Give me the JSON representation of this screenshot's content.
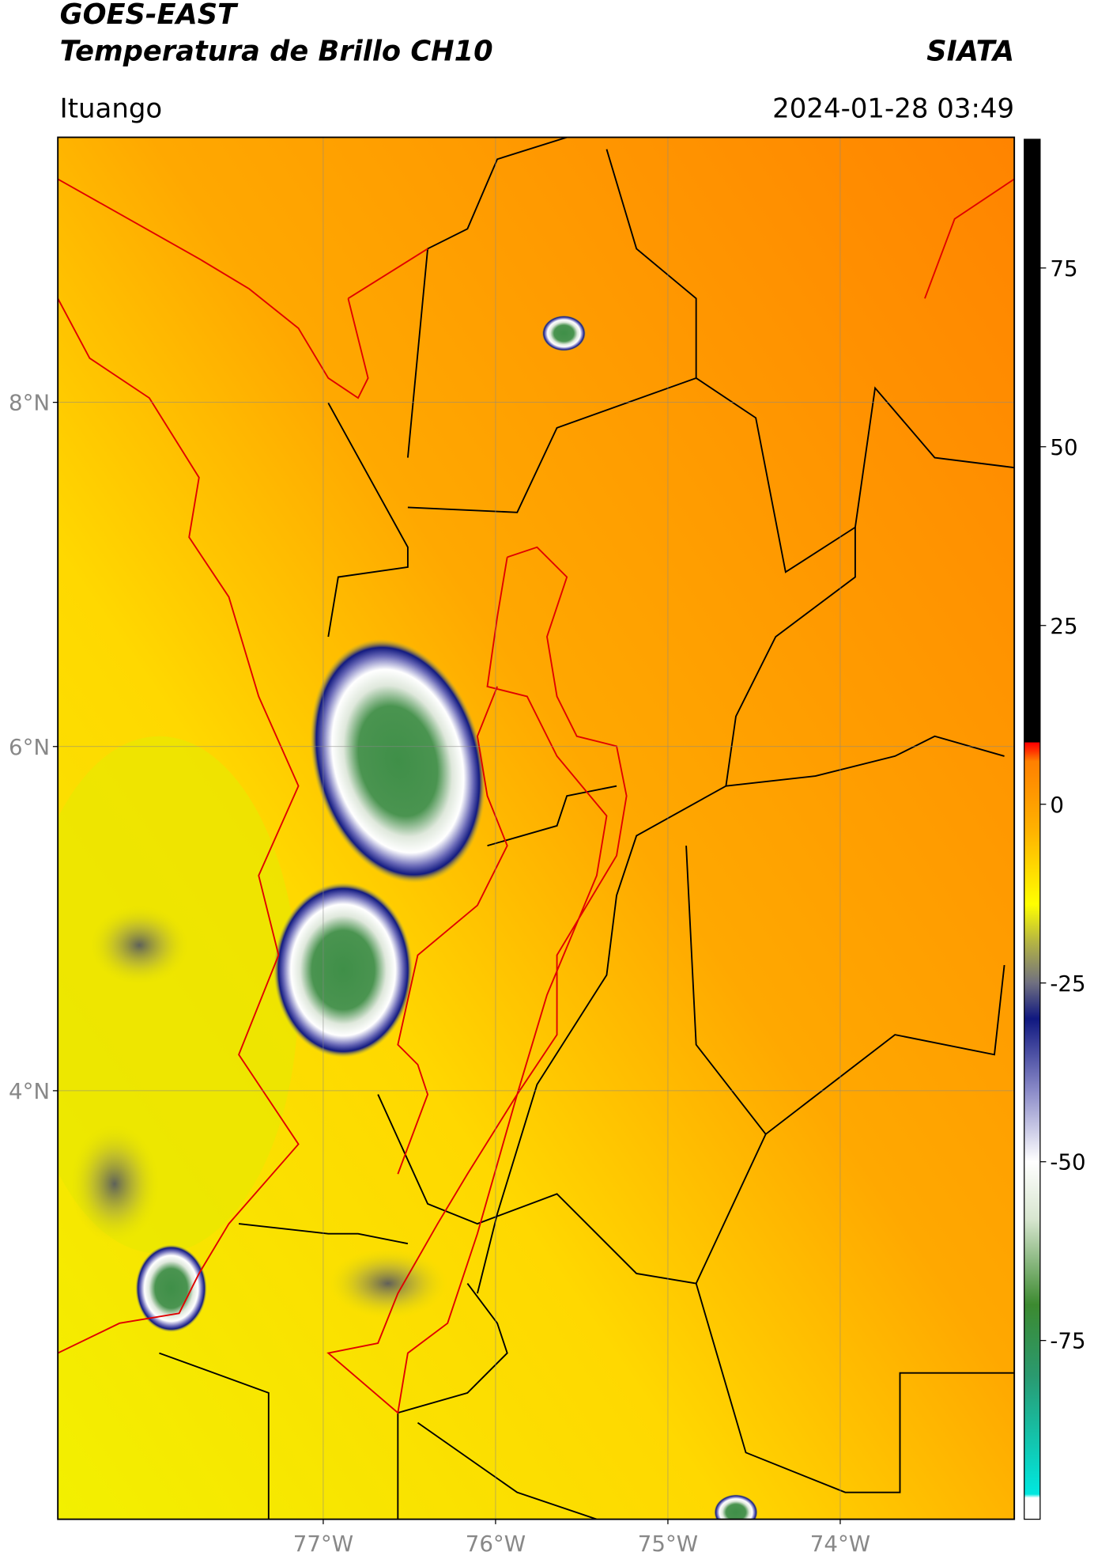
{
  "header": {
    "title_line1": "GOES-EAST",
    "title_line2": "Temperatura de Brillo CH10",
    "brand": "SIATA",
    "location": "Ituango",
    "datetime": "2024-01-28 03:49"
  },
  "map": {
    "lonlim": [
      -78.54,
      -72.99
    ],
    "latlim": [
      1.51,
      9.54
    ],
    "lat_ticks": [
      {
        "value": 8,
        "label": "8°N"
      },
      {
        "value": 6,
        "label": "6°N"
      },
      {
        "value": 4,
        "label": "4°N"
      }
    ],
    "lon_ticks": [
      {
        "value": -77,
        "label": "77°W"
      },
      {
        "value": -76,
        "label": "76°W"
      },
      {
        "value": -75,
        "label": "75°W"
      },
      {
        "value": -74,
        "label": "74°W"
      }
    ],
    "grid": true
  },
  "colorbar": {
    "lim": [
      -100,
      93
    ],
    "ticks": [
      75,
      50,
      25,
      0,
      -25,
      -50,
      -75
    ],
    "colormap": [
      [
        -100,
        "#ffffff"
      ],
      [
        -97,
        "#ffffff"
      ],
      [
        -96.5,
        "#00e8e0"
      ],
      [
        -80,
        "#2a9a70"
      ],
      [
        -70,
        "#3c8a30"
      ],
      [
        -58,
        "#d8e6d0"
      ],
      [
        -50,
        "#ffffff"
      ],
      [
        -40,
        "#8a8ac8"
      ],
      [
        -30,
        "#101880"
      ],
      [
        -25,
        "#707080"
      ],
      [
        -19,
        "#b8b840"
      ],
      [
        -14,
        "#ffff00"
      ],
      [
        -4,
        "#ffb400"
      ],
      [
        6,
        "#ff8000"
      ],
      [
        7.5,
        "#ff3000"
      ],
      [
        8.6,
        "#ff0000"
      ],
      [
        8.7,
        "#000000"
      ],
      [
        93,
        "#000000"
      ]
    ]
  }
}
